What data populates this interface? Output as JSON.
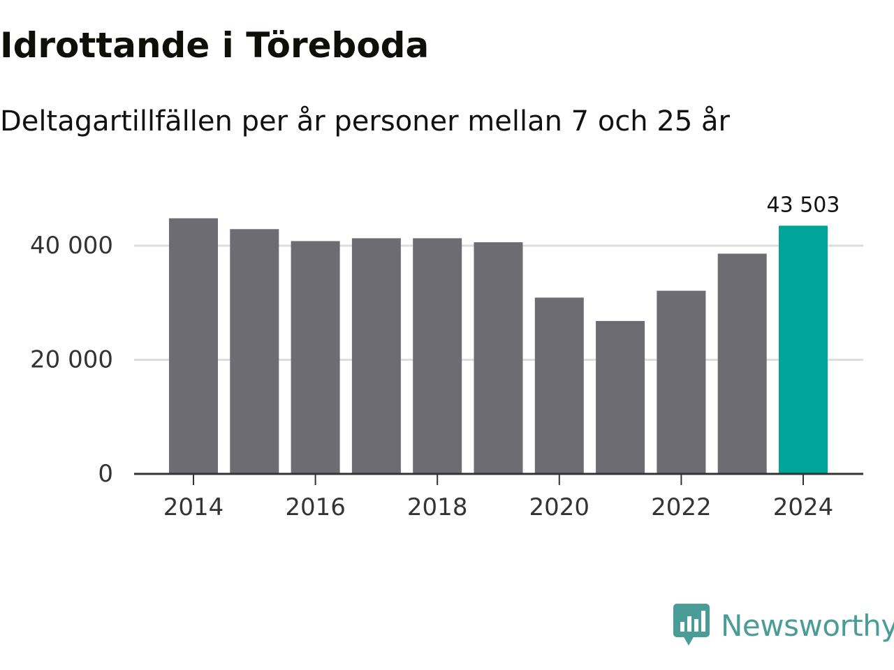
{
  "chart_data": {
    "type": "bar",
    "title": "Idrottande i Töreboda",
    "subtitle": "Deltagartillfällen per år personer mellan 7 och 25 år",
    "categories": [
      "2014",
      "2015",
      "2016",
      "2017",
      "2018",
      "2019",
      "2020",
      "2021",
      "2022",
      "2023",
      "2024"
    ],
    "values": [
      44800,
      42900,
      40800,
      41300,
      41300,
      40600,
      30900,
      26800,
      32100,
      38600,
      43503
    ],
    "x_tick_labels": [
      "2014",
      "2016",
      "2018",
      "2020",
      "2022",
      "2024"
    ],
    "y_ticks": [
      0,
      20000,
      40000
    ],
    "y_tick_labels": [
      "0",
      "20 000",
      "40 000"
    ],
    "ylim": [
      0,
      48000
    ],
    "xlabel": "",
    "ylabel": "",
    "grid": true,
    "highlight": {
      "category": "2024",
      "value_label": "43 503"
    },
    "colors": {
      "bar": "#6d6c72",
      "highlight": "#00a59a",
      "grid": "#dddddd",
      "axis": "#333333"
    }
  },
  "brand": {
    "name": "Newsworthy",
    "logo_icon": "bar-chart-speech-bubble-icon",
    "color": "#4a9d97"
  }
}
